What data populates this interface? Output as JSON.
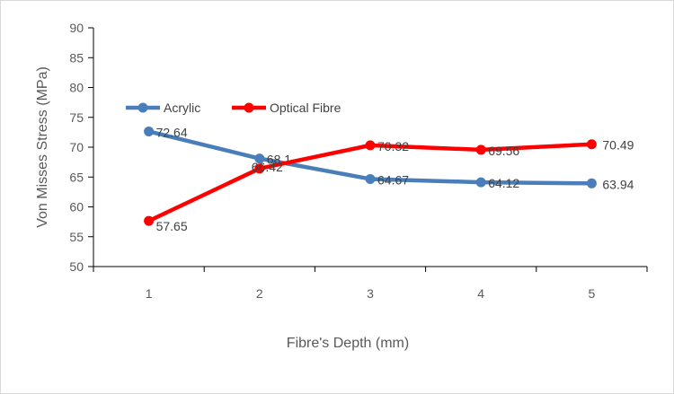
{
  "chart_data": {
    "type": "line",
    "title": "",
    "xlabel": "Fibre's Depth (mm)",
    "ylabel": "Von Misses Stress (MPa)",
    "categories": [
      "1",
      "2",
      "3",
      "4",
      "5"
    ],
    "ylim": [
      50,
      90
    ],
    "yticks": [
      "50",
      "55",
      "60",
      "65",
      "70",
      "75",
      "80",
      "85",
      "90"
    ],
    "grid": false,
    "legend_position": "left, inside plot",
    "series": [
      {
        "name": "Acrylic",
        "color": "#4a7ebb",
        "values": [
          72.64,
          68.1,
          64.67,
          64.12,
          63.94
        ],
        "labels": [
          "72.64",
          "68.1",
          "64.67",
          "64.12",
          "63.94"
        ]
      },
      {
        "name": "Optical Fibre",
        "color": "#ff0000",
        "values": [
          57.65,
          66.42,
          70.32,
          69.56,
          70.49
        ],
        "labels": [
          "57.65",
          "66.42",
          "70.32",
          "69.56",
          "70.49"
        ]
      }
    ]
  }
}
